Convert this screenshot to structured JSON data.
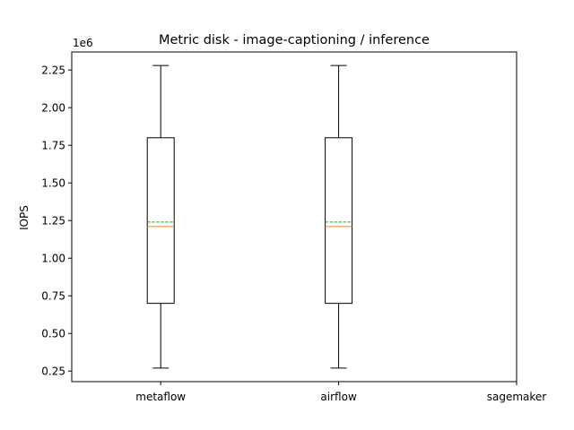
{
  "chart_data": {
    "type": "box",
    "title": "Metric disk - image-captioning / inference",
    "xlabel": "",
    "ylabel": "IOPS",
    "y_offset_label": "1e6",
    "y_scale": 1000000,
    "ylim": [
      180000,
      2370000
    ],
    "yticks": [
      250000,
      500000,
      750000,
      1000000,
      1250000,
      1500000,
      1750000,
      2000000,
      2250000
    ],
    "ytick_labels": [
      "0.25",
      "0.50",
      "0.75",
      "1.00",
      "1.25",
      "1.50",
      "1.75",
      "2.00",
      "2.25"
    ],
    "categories": [
      "metaflow",
      "airflow",
      "sagemaker"
    ],
    "boxes": [
      {
        "category": "metaflow",
        "whisker_low": 270000,
        "q1": 700000,
        "median": 1210000,
        "mean": 1240000,
        "q3": 1800000,
        "whisker_high": 2280000
      },
      {
        "category": "airflow",
        "whisker_low": 270000,
        "q1": 700000,
        "median": 1210000,
        "mean": 1240000,
        "q3": 1800000,
        "whisker_high": 2280000
      },
      {
        "category": "sagemaker",
        "whisker_low": null,
        "q1": null,
        "median": null,
        "mean": null,
        "q3": null,
        "whisker_high": null
      }
    ],
    "colors": {
      "box": "#000000",
      "median": "#ff7f0e",
      "mean": "#2ca02c"
    },
    "grid": false,
    "legend": "none"
  }
}
